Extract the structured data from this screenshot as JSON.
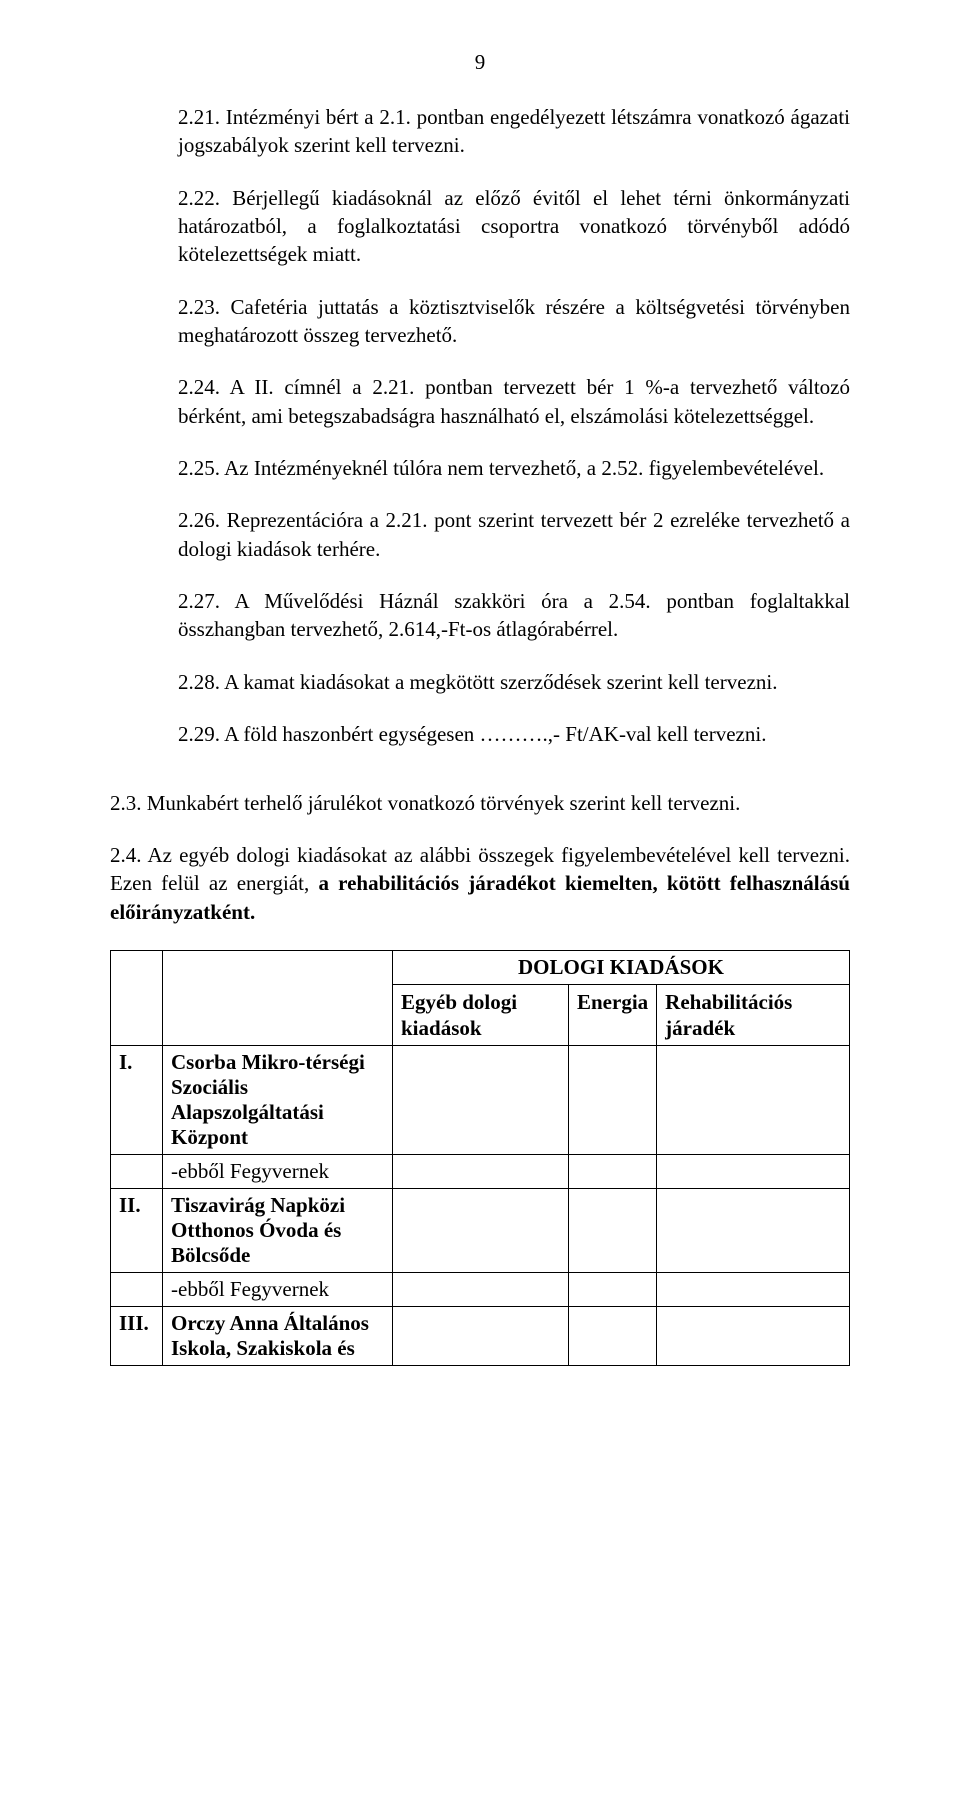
{
  "page_number": "9",
  "paragraphs": {
    "p221": "2.21. Intézményi bért a 2.1. pontban engedélyezett létszámra vonatkozó ágazati jogszabályok szerint kell tervezni.",
    "p222": "2.22. Bérjellegű kiadásoknál az előző évitől el lehet térni önkormányzati határozatból, a foglalkoztatási csoportra vonatkozó törvényből adódó kötelezettségek miatt.",
    "p223": "2.23. Cafetéria juttatás  a köztisztviselők részére a költségvetési törvényben meghatározott  összeg  tervezhető.",
    "p224": "2.24.  A II. címnél a 2.21. pontban tervezett bér 1 %-a tervezhető változó bérként, ami betegszabadságra használható el, elszámolási kötelezettséggel.",
    "p225": "2.25.  Az Intézményeknél túlóra nem tervezhető, a 2.52. figyelembevételével.",
    "p226": "2.26. Reprezentációra a 2.21. pont szerint tervezett bér 2 ezreléke tervezhető a dologi kiadások terhére.",
    "p227": "2.27. A Művelődési Háznál szakköri óra a 2.54. pontban foglaltakkal összhangban tervezhető, 2.614,-Ft-os átlagórabérrel.",
    "p228": "2.28.   A kamat kiadásokat a megkötött szerződések szerint kell tervezni.",
    "p229": "2.29.   A föld haszonbért egységesen ……….,- Ft/AK-val kell tervezni.",
    "p23": "2.3.     Munkabért terhelő járulékot vonatkozó törvények szerint kell tervezni.",
    "p24a": "2.4. Az egyéb dologi kiadásokat az alábbi összegek figyelembevételével kell tervezni. Ezen felül az energiát, ",
    "p24b": "a rehabilitációs járadékot kiemelten, kötött felhasználású előirányzatként."
  },
  "table": {
    "header_title": "DOLOGI KIADÁSOK",
    "col1": "Egyéb dologi kiadások",
    "col2": "Energia",
    "col3": "Rehabilitációs járadék",
    "rows": [
      {
        "num": "I.",
        "name": "Csorba Mikro-térségi Szociális Alapszolgáltatási Központ"
      },
      {
        "num": "",
        "name": "-ebből Fegyvernek"
      },
      {
        "num": "II.",
        "name": "Tiszavirág Napközi Otthonos Óvoda és Bölcsőde"
      },
      {
        "num": "",
        "name": "-ebből Fegyvernek"
      },
      {
        "num": "III.",
        "name": "Orczy Anna Általános Iskola, Szakiskola és"
      }
    ]
  },
  "colors": {
    "text": "#000000",
    "background": "#ffffff",
    "border": "#000000"
  },
  "typography": {
    "font_family": "Times New Roman",
    "body_fontsize_pt": 16,
    "line_height": 1.35
  }
}
